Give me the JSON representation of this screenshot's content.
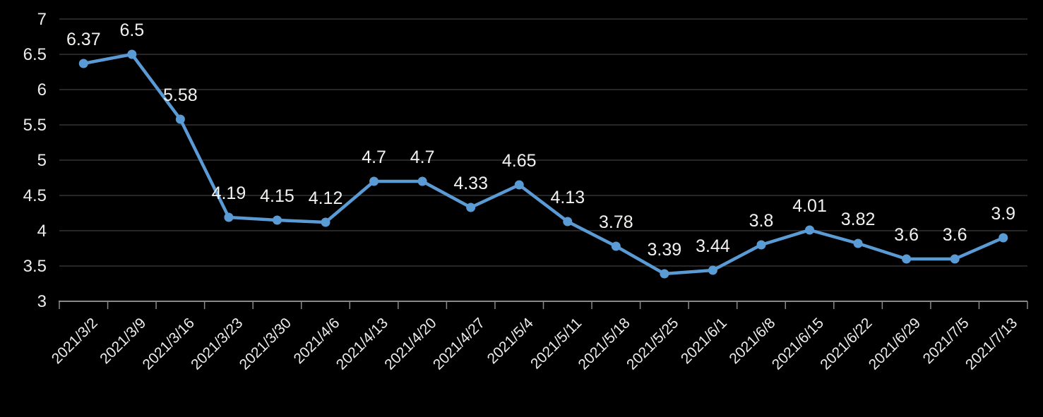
{
  "chart_data": {
    "type": "line",
    "title": "",
    "xlabel": "",
    "ylabel": "",
    "categories": [
      "2021/3/2",
      "2021/3/9",
      "2021/3/16",
      "2021/3/23",
      "2021/3/30",
      "2021/4/6",
      "2021/4/13",
      "2021/4/20",
      "2021/4/27",
      "2021/5/4",
      "2021/5/11",
      "2021/5/18",
      "2021/5/25",
      "2021/6/1",
      "2021/6/8",
      "2021/6/15",
      "2021/6/22",
      "2021/6/29",
      "2021/7/5",
      "2021/7/13"
    ],
    "values": [
      6.37,
      6.5,
      5.58,
      4.19,
      4.15,
      4.12,
      4.7,
      4.7,
      4.33,
      4.65,
      4.13,
      3.78,
      3.39,
      3.44,
      3.8,
      4.01,
      3.82,
      3.6,
      3.6,
      3.9
    ],
    "data_labels": [
      "6.37",
      "6.5",
      "5.58",
      "4.19",
      "4.15",
      "4.12",
      "4.7",
      "4.7",
      "4.33",
      "4.65",
      "4.13",
      "3.78",
      "3.39",
      "3.44",
      "3.8",
      "4.01",
      "3.82",
      "3.6",
      "3.6",
      "3.9"
    ],
    "ylim": [
      3,
      7
    ],
    "y_ticks": [
      3,
      3.5,
      4,
      4.5,
      5,
      5.5,
      6,
      6.5,
      7
    ],
    "y_tick_labels": [
      "3",
      "3.5",
      "4",
      "4.5",
      "5",
      "5.5",
      "6",
      "6.5",
      "7"
    ],
    "grid": true,
    "legend": false,
    "x_label_rotation_deg": 45,
    "colors": {
      "background": "#000000",
      "series_line": "#5B9BD5",
      "marker": "#5B9BD5",
      "gridline": "#333333",
      "axis_line": "#898989",
      "tick_label": "#ECECEC",
      "data_label": "#F2F1EF"
    }
  }
}
